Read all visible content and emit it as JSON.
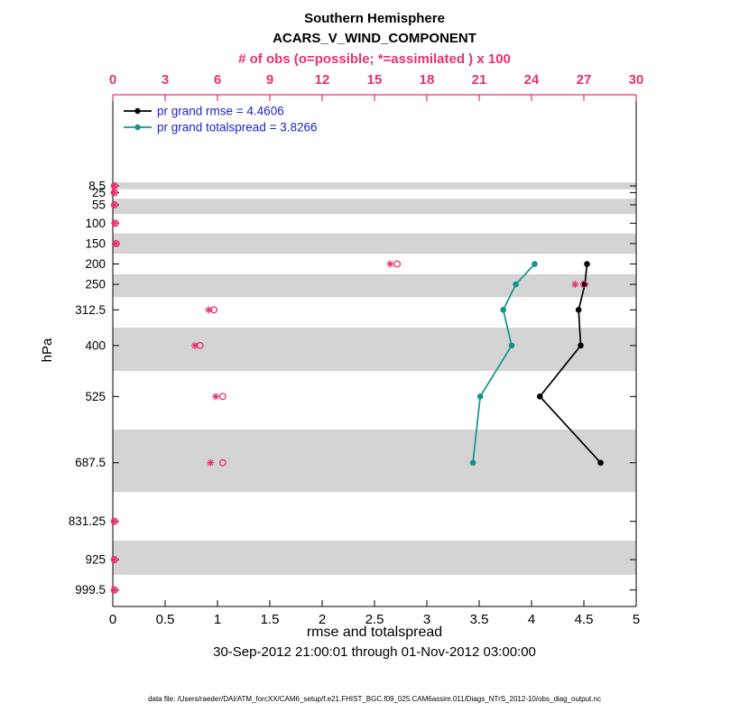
{
  "page": {
    "title": "Southern Hemisphere",
    "subtitle": "ACARS_V_WIND_COMPONENT",
    "obs_axis_title": "# of obs (o=possible; *=assimilated ) x 100",
    "xlabel": "rmse and totalspread",
    "ylabel": "hPa",
    "timespan": "30-Sep-2012 21:00:01 through 01-Nov-2012 03:00:00",
    "datafile": "data file: /Users/raeder/DAI/ATM_forcXX/CAM6_setup/f.e21.FHIST_BGC.f09_025.CAM6assim.011/Diags_NTrS_2012-10/obs_diag_output.nc"
  },
  "legend": {
    "rmse_label": "pr grand rmse = 4.4606",
    "spread_label": "pr grand totalspread = 3.8266"
  },
  "colors": {
    "obs_pink": "#e8316f",
    "rmse_black": "#000000",
    "spread_teal": "#12948a",
    "legend_blue": "#2323cb",
    "band_gray": "#d4d4d4"
  },
  "chart_data": {
    "type": "line",
    "title": "Southern Hemisphere",
    "subtitle": "ACARS_V_WIND_COMPONENT",
    "xlabel": "rmse and totalspread",
    "ylabel": "hPa",
    "x_axis": {
      "range": [
        0,
        5
      ],
      "ticks": [
        0,
        0.5,
        1,
        1.5,
        2,
        2.5,
        3,
        3.5,
        4,
        4.5,
        5
      ]
    },
    "obs_axis": {
      "label": "# of obs (o=possible; *=assimilated ) x 100",
      "range": [
        0,
        30
      ],
      "ticks": [
        0,
        3,
        6,
        9,
        12,
        15,
        18,
        21,
        24,
        27,
        30
      ]
    },
    "y_axis": {
      "label": "hPa",
      "pressure_levels": [
        8.5,
        25,
        55,
        100,
        150,
        200,
        250,
        312.5,
        400,
        525,
        687.5,
        831.25,
        925,
        999.5
      ],
      "range": [
        -215,
        1040
      ]
    },
    "shaded_bands_hpa": [
      [
        0,
        16.75
      ],
      [
        40,
        77.5
      ],
      [
        125,
        175
      ],
      [
        225,
        281.25
      ],
      [
        356.25,
        462.5
      ],
      [
        606.25,
        759.375
      ],
      [
        878.125,
        962.25
      ]
    ],
    "series": [
      {
        "name": "pr grand rmse",
        "summary_value": 4.4606,
        "color_key": "rmse_black",
        "levels_hpa": [
          200,
          250,
          312.5,
          400,
          525,
          687.5
        ],
        "values": [
          4.53,
          4.51,
          4.45,
          4.47,
          4.08,
          4.66
        ]
      },
      {
        "name": "pr grand totalspread",
        "summary_value": 3.8266,
        "color_key": "spread_teal",
        "levels_hpa": [
          200,
          250,
          312.5,
          400,
          525,
          687.5
        ],
        "values": [
          4.03,
          3.85,
          3.73,
          3.81,
          3.51,
          3.44
        ]
      }
    ],
    "obs_counts_x100": {
      "levels_hpa": [
        8.5,
        25,
        55,
        100,
        150,
        200,
        250,
        312.5,
        400,
        525,
        687.5,
        831.25,
        925,
        999.5
      ],
      "possible": [
        0.1,
        0.1,
        0.1,
        0.15,
        0.2,
        16.3,
        27.0,
        5.8,
        5.0,
        6.3,
        6.3,
        0.1,
        0.1,
        0.1
      ],
      "assimilated": [
        0.08,
        0.08,
        0.08,
        0.1,
        0.15,
        15.9,
        26.5,
        5.5,
        4.7,
        5.9,
        5.6,
        0.08,
        0.08,
        0.08
      ]
    },
    "legend_position": "top-left-inside",
    "grid": false
  }
}
